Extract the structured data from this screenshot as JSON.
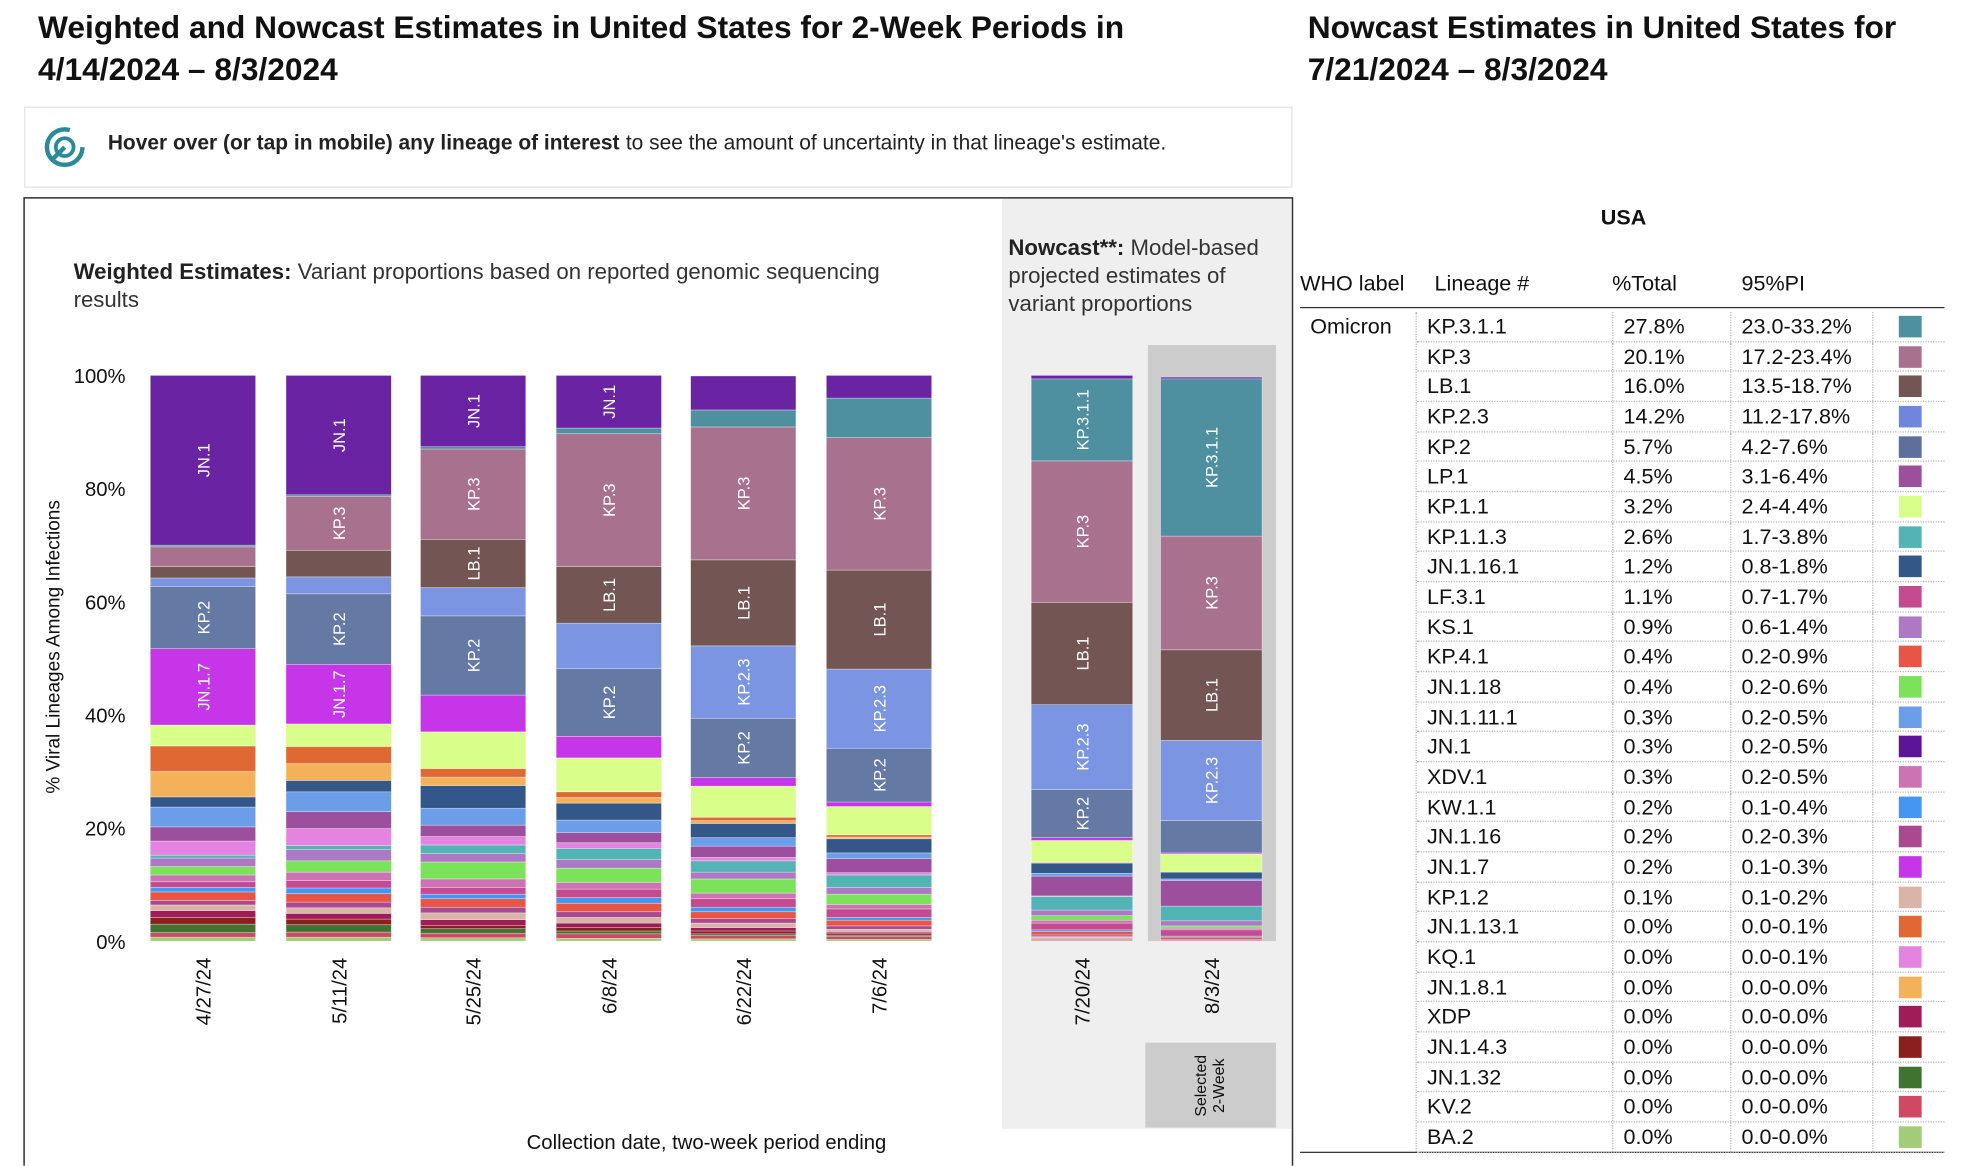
{
  "header": {
    "title": "Weighted and Nowcast Estimates in United States for 2-Week Periods in 4/14/2024 – 8/3/2024",
    "nowcast_title": "Nowcast Estimates in United States for 7/21/2024 – 8/3/2024"
  },
  "info": {
    "bold": "Hover over (or tap in mobile) any lineage of interest",
    "text": "to see the amount of uncertainty in that lineage's estimate."
  },
  "chart_data": {
    "type": "bar",
    "stacked": true,
    "weighted_label": "Weighted Estimates:",
    "weighted_text": "Variant proportions based on reported genomic sequencing results",
    "nowcast_label": "Nowcast**:",
    "nowcast_text": "Model-based projected estimates of variant proportions",
    "ylabel": "% Viral Lineages Among Infections",
    "xlabel": "Collection date, two-week period ending",
    "selected_label": "Selected 2-Week",
    "ylim": [
      0,
      100
    ],
    "yticks": [
      {
        "value": 0,
        "label": "0%"
      },
      {
        "value": 20,
        "label": "20%"
      },
      {
        "value": 40,
        "label": "40%"
      },
      {
        "value": 60,
        "label": "60%"
      },
      {
        "value": 80,
        "label": "80%"
      },
      {
        "value": 100,
        "label": "100%"
      }
    ],
    "categories": [
      "4/27/24",
      "5/11/24",
      "5/25/24",
      "6/8/24",
      "6/22/24",
      "7/6/24",
      "7/20/24",
      "8/3/24"
    ],
    "series": [
      {
        "name": "JN.1",
        "color": "#6a24a3",
        "values": [
          30,
          21.1,
          12.6,
          9.3,
          6,
          4,
          0.6,
          0.3
        ]
      },
      {
        "name": "KP.3.1.1",
        "color": "#4e8fa0",
        "values": [
          0.3,
          0.3,
          0.4,
          1,
          3,
          7,
          14.5,
          27.8
        ]
      },
      {
        "name": "KP.3",
        "color": "#a8728f",
        "values": [
          3.5,
          9.5,
          16,
          23.5,
          23.5,
          23.4,
          25,
          20.1
        ]
      },
      {
        "name": "LB.1",
        "color": "#735653",
        "values": [
          2,
          4.7,
          8.5,
          10,
          15.2,
          17.5,
          18.1,
          16
        ]
      },
      {
        "name": "KP.2.3",
        "color": "#7b95e3",
        "values": [
          1.5,
          3,
          5,
          8,
          12.8,
          14,
          15,
          14.2
        ]
      },
      {
        "name": "KP.2",
        "color": "#6479a3",
        "values": [
          11,
          12.5,
          14,
          12,
          10.5,
          9.5,
          8.5,
          5.7
        ]
      },
      {
        "name": "JN.1.7",
        "color": "#c636e8",
        "values": [
          13.5,
          10.5,
          6.5,
          3.8,
          1.5,
          0.8,
          0.5,
          0.2
        ]
      },
      {
        "name": "KP.1.1",
        "color": "#d9ff8a",
        "values": [
          3.7,
          4,
          6.5,
          6,
          5.5,
          5,
          3.8,
          3.2
        ]
      },
      {
        "name": "JN.1.13.1",
        "color": "#df6833",
        "values": [
          4.5,
          3,
          1.5,
          1,
          0.6,
          0.4,
          0.1,
          0
        ]
      },
      {
        "name": "JN.1.8.1",
        "color": "#f3b25a",
        "values": [
          4.5,
          3,
          1.5,
          1,
          0.5,
          0.3,
          0.1,
          0
        ]
      },
      {
        "name": "JN.1.16.1",
        "color": "#34578a",
        "values": [
          1.8,
          2,
          4,
          3,
          2.5,
          2.5,
          1.8,
          1.2
        ]
      },
      {
        "name": "JN.1.11.1",
        "color": "#6b9de8",
        "values": [
          3.5,
          3.5,
          3,
          2.2,
          1.5,
          1,
          0.5,
          0.3
        ]
      },
      {
        "name": "LP.1",
        "color": "#9b4f9c",
        "values": [
          2.5,
          3,
          2,
          1.8,
          2,
          2.5,
          3.5,
          4.5
        ]
      },
      {
        "name": "KQ.1",
        "color": "#e584e0",
        "values": [
          2.5,
          3,
          1.5,
          1,
          0.6,
          0.4,
          0.1,
          0
        ]
      },
      {
        "name": "KP.1.1.3",
        "color": "#52b4b4",
        "values": [
          0.5,
          0.7,
          1.5,
          2,
          2,
          2.2,
          2.4,
          2.6
        ]
      },
      {
        "name": "KS.1",
        "color": "#ad78c4",
        "values": [
          1.5,
          2,
          1.5,
          1.5,
          1.2,
          1.2,
          1,
          0.9
        ]
      },
      {
        "name": "JN.1.18",
        "color": "#7ae35a",
        "values": [
          1.5,
          2,
          3,
          2.5,
          2.5,
          1.8,
          0.8,
          0.4
        ]
      },
      {
        "name": "XDV.1",
        "color": "#cc73b3",
        "values": [
          1.2,
          1.5,
          1.5,
          1.2,
          1,
          0.8,
          0.5,
          0.3
        ]
      },
      {
        "name": "LF.3.1",
        "color": "#c44b8f",
        "values": [
          1,
          1.3,
          1.2,
          1.5,
          1.5,
          1.5,
          1.2,
          1.1
        ]
      },
      {
        "name": "KW.1.1",
        "color": "#4596f2",
        "values": [
          0.8,
          1,
          0.8,
          1,
          0.8,
          0.5,
          0.3,
          0.2
        ]
      },
      {
        "name": "KP.4.1",
        "color": "#e85546",
        "values": [
          1.5,
          1.5,
          1.5,
          1.5,
          1.2,
          1,
          0.6,
          0.4
        ]
      },
      {
        "name": "JN.1.16",
        "color": "#aa4890",
        "values": [
          0.8,
          1,
          1,
          1,
          0.8,
          0.6,
          0.3,
          0.2
        ]
      },
      {
        "name": "KP.1.2",
        "color": "#d8b5a6",
        "values": [
          1,
          1,
          1.2,
          1,
          0.8,
          0.5,
          0.2,
          0.1
        ]
      },
      {
        "name": "XDP",
        "color": "#a01c58",
        "values": [
          1.2,
          1,
          1,
          0.8,
          0.6,
          0.3,
          0.1,
          0
        ]
      },
      {
        "name": "JN.1.4.3",
        "color": "#8b1f1f",
        "values": [
          1.2,
          1,
          0.6,
          0.6,
          0.5,
          0.3,
          0.1,
          0
        ]
      },
      {
        "name": "JN.1.32",
        "color": "#3f7430",
        "values": [
          1.5,
          1.3,
          0.8,
          0.5,
          0.3,
          0.2,
          0.1,
          0
        ]
      },
      {
        "name": "KV.2",
        "color": "#cf4964",
        "values": [
          0.8,
          0.9,
          0.8,
          0.8,
          0.6,
          0.5,
          0.2,
          0
        ]
      },
      {
        "name": "BA.2",
        "color": "#a2cc78",
        "values": [
          0.7,
          0.7,
          0.6,
          0.5,
          0.4,
          0.3,
          0.1,
          0
        ]
      }
    ]
  },
  "table": {
    "title": "USA",
    "columns": [
      "WHO label",
      "Lineage #",
      "%Total",
      "95%PI"
    ],
    "who_label": "Omicron",
    "rows": [
      {
        "lineage": "KP.3.1.1",
        "total": "27.8%",
        "pi": "23.0-33.2%",
        "color": "#4e8fa0"
      },
      {
        "lineage": "KP.3",
        "total": "20.1%",
        "pi": "17.2-23.4%",
        "color": "#a8728f"
      },
      {
        "lineage": "LB.1",
        "total": "16.0%",
        "pi": "13.5-18.7%",
        "color": "#735653"
      },
      {
        "lineage": "KP.2.3",
        "total": "14.2%",
        "pi": "11.2-17.8%",
        "color": "#7086dc"
      },
      {
        "lineage": "KP.2",
        "total": "5.7%",
        "pi": "4.2-7.6%",
        "color": "#5e6f9e"
      },
      {
        "lineage": "LP.1",
        "total": "4.5%",
        "pi": "3.1-6.4%",
        "color": "#9b4f9c"
      },
      {
        "lineage": "KP.1.1",
        "total": "3.2%",
        "pi": "2.4-4.4%",
        "color": "#d9ff8a"
      },
      {
        "lineage": "KP.1.1.3",
        "total": "2.6%",
        "pi": "1.7-3.8%",
        "color": "#52b4b4"
      },
      {
        "lineage": "JN.1.16.1",
        "total": "1.2%",
        "pi": "0.8-1.8%",
        "color": "#34578a"
      },
      {
        "lineage": "LF.3.1",
        "total": "1.1%",
        "pi": "0.7-1.7%",
        "color": "#c44b8f"
      },
      {
        "lineage": "KS.1",
        "total": "0.9%",
        "pi": "0.6-1.4%",
        "color": "#ad78c4"
      },
      {
        "lineage": "KP.4.1",
        "total": "0.4%",
        "pi": "0.2-0.9%",
        "color": "#e85546"
      },
      {
        "lineage": "JN.1.18",
        "total": "0.4%",
        "pi": "0.2-0.6%",
        "color": "#7ae35a"
      },
      {
        "lineage": "JN.1.11.1",
        "total": "0.3%",
        "pi": "0.2-0.5%",
        "color": "#6b9de8"
      },
      {
        "lineage": "JN.1",
        "total": "0.3%",
        "pi": "0.2-0.5%",
        "color": "#5c1598"
      },
      {
        "lineage": "XDV.1",
        "total": "0.3%",
        "pi": "0.2-0.5%",
        "color": "#cc73b3"
      },
      {
        "lineage": "KW.1.1",
        "total": "0.2%",
        "pi": "0.1-0.4%",
        "color": "#4596f2"
      },
      {
        "lineage": "JN.1.16",
        "total": "0.2%",
        "pi": "0.2-0.3%",
        "color": "#aa4890"
      },
      {
        "lineage": "JN.1.7",
        "total": "0.2%",
        "pi": "0.1-0.3%",
        "color": "#c636e8"
      },
      {
        "lineage": "KP.1.2",
        "total": "0.1%",
        "pi": "0.1-0.2%",
        "color": "#d8b5a6"
      },
      {
        "lineage": "JN.1.13.1",
        "total": "0.0%",
        "pi": "0.0-0.1%",
        "color": "#df6833"
      },
      {
        "lineage": "KQ.1",
        "total": "0.0%",
        "pi": "0.0-0.1%",
        "color": "#e584e0"
      },
      {
        "lineage": "JN.1.8.1",
        "total": "0.0%",
        "pi": "0.0-0.0%",
        "color": "#f3b25a"
      },
      {
        "lineage": "XDP",
        "total": "0.0%",
        "pi": "0.0-0.0%",
        "color": "#a01c58"
      },
      {
        "lineage": "JN.1.4.3",
        "total": "0.0%",
        "pi": "0.0-0.0%",
        "color": "#8b1f1f"
      },
      {
        "lineage": "JN.1.32",
        "total": "0.0%",
        "pi": "0.0-0.0%",
        "color": "#3f7430"
      },
      {
        "lineage": "KV.2",
        "total": "0.0%",
        "pi": "0.0-0.0%",
        "color": "#cf4964"
      },
      {
        "lineage": "BA.2",
        "total": "0.0%",
        "pi": "0.0-0.0%",
        "color": "#a2cc78"
      }
    ]
  }
}
